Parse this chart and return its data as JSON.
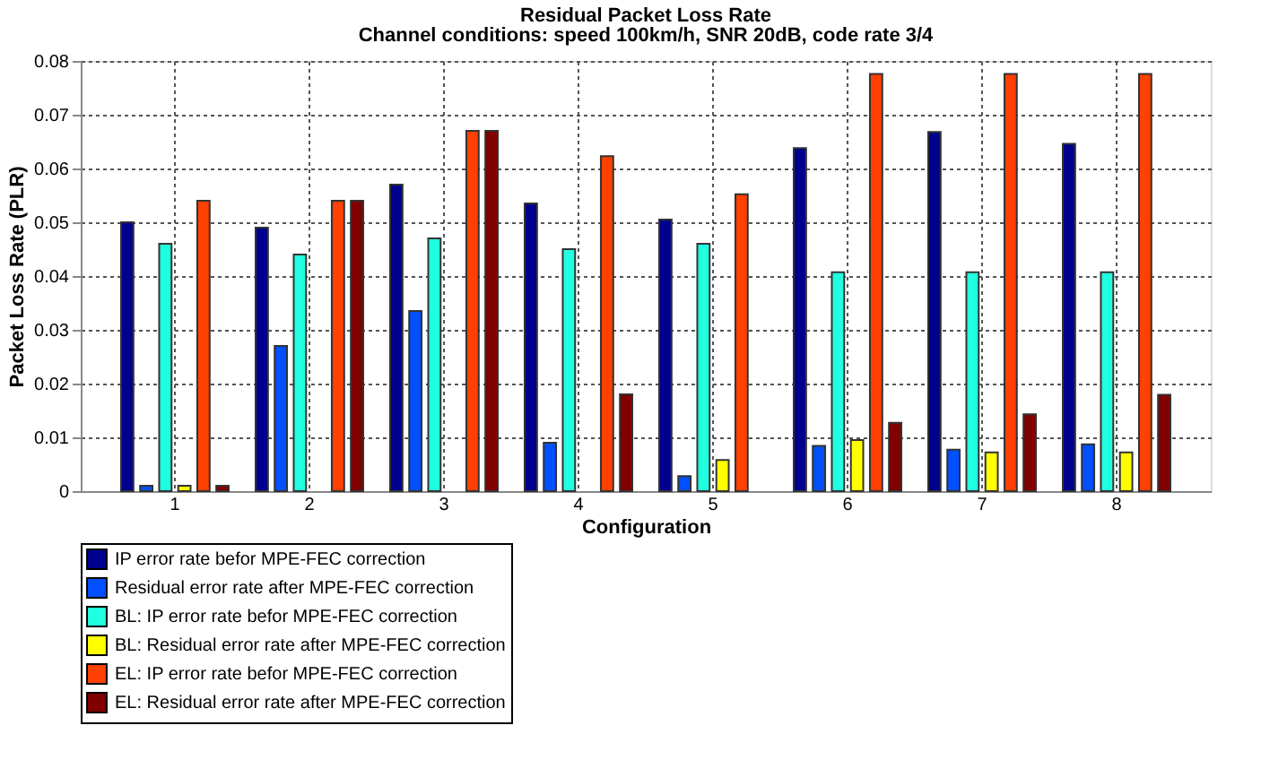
{
  "chart_data": {
    "type": "bar",
    "title": "Residual Packet Loss Rate",
    "subtitle": "Channel conditions: speed 100km/h, SNR 20dB, code rate 3/4",
    "xlabel": "Configuration",
    "ylabel": "Packet Loss Rate (PLR)",
    "categories": [
      "1",
      "2",
      "3",
      "4",
      "5",
      "6",
      "7",
      "8"
    ],
    "series": [
      {
        "name": "IP error rate befor MPE-FEC correction",
        "color": "#00008f",
        "values": [
          0.05,
          0.049,
          0.057,
          0.0535,
          0.0505,
          0.0638,
          0.0668,
          0.0646
        ]
      },
      {
        "name": "Residual error rate after MPE-FEC correction",
        "color": "#0050ff",
        "values": [
          0.001,
          0.027,
          0.0335,
          0.009,
          0.0028,
          0.0084,
          0.0077,
          0.0087
        ]
      },
      {
        "name": "BL: IP error rate befor MPE-FEC correction",
        "color": "#20ffdf",
        "values": [
          0.046,
          0.044,
          0.047,
          0.045,
          0.046,
          0.0407,
          0.0407,
          0.0407
        ]
      },
      {
        "name": "BL: Residual error rate after MPE-FEC correction",
        "color": "#ffff00",
        "values": [
          0.001,
          null,
          null,
          null,
          0.0058,
          0.0095,
          0.0072,
          0.0072
        ]
      },
      {
        "name": "EL: IP error rate befor MPE-FEC correction",
        "color": "#ff4000",
        "values": [
          0.054,
          0.054,
          0.067,
          0.0623,
          0.0552,
          0.0776,
          0.0776,
          0.0776
        ]
      },
      {
        "name": "EL: Residual error rate after MPE-FEC correction",
        "color": "#800000",
        "values": [
          0.001,
          0.054,
          0.067,
          0.018,
          null,
          0.0127,
          0.0143,
          0.0179
        ]
      }
    ],
    "ylim": [
      0,
      0.08
    ],
    "yticks": [
      0,
      0.01,
      0.02,
      0.03,
      0.04,
      0.05,
      0.06,
      0.07,
      0.08
    ],
    "grid": true,
    "legend": "bottom"
  }
}
